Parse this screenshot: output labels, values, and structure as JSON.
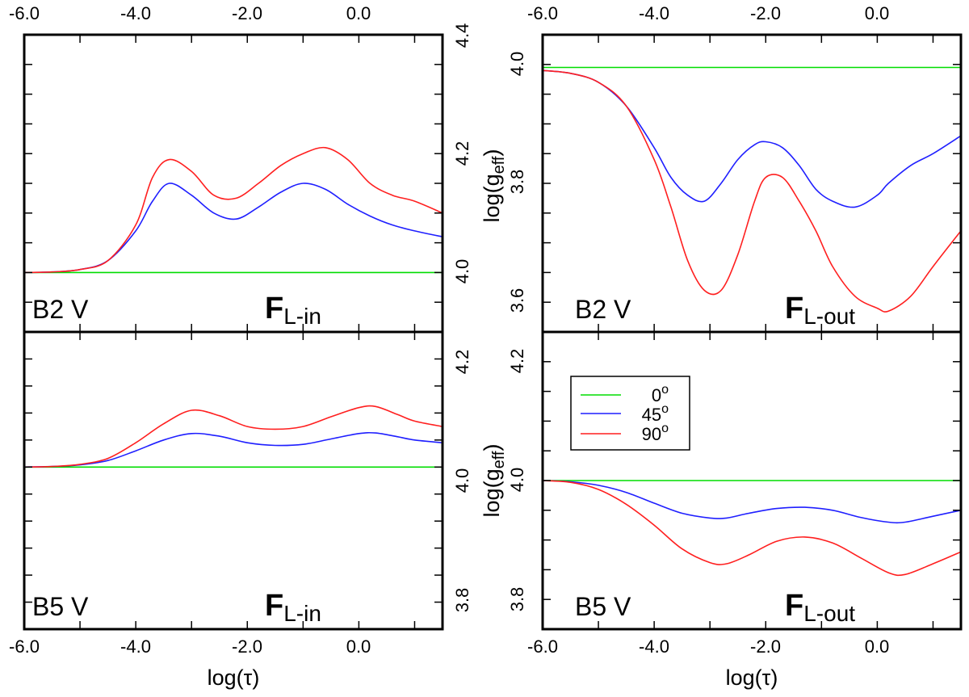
{
  "colors": {
    "green": "#00dd00",
    "blue": "#1f1fff",
    "red": "#ff1f1f"
  },
  "axes": {
    "x_label_text": "log(",
    "x_label_tau": "τ",
    "x_label_close": ")",
    "y_label_prefix": "log(g",
    "y_label_sub": "eff",
    "y_label_close": ")",
    "x_ticks": [
      "-6.0",
      "-4.0",
      "-2.0",
      "0.0"
    ]
  },
  "legend": {
    "entries": [
      {
        "color": "green",
        "value": "0",
        "deg": "o"
      },
      {
        "color": "blue",
        "value": "45",
        "deg": "o"
      },
      {
        "color": "red",
        "value": "90",
        "deg": "o"
      }
    ]
  },
  "chart_data": [
    {
      "id": "tl",
      "type": "line",
      "star_label": "B2 V",
      "flux_F": "F",
      "flux_sub": "L-in",
      "xlim": [
        -6.0,
        1.5
      ],
      "ylim": [
        3.9,
        4.4
      ],
      "y_ticks": [
        "4.0",
        "4.2",
        "4.4"
      ],
      "x": [
        -6.0,
        -5.5,
        -5.0,
        -4.5,
        -4.0,
        -3.7,
        -3.4,
        -3.0,
        -2.6,
        -2.2,
        -1.8,
        -1.4,
        -1.0,
        -0.6,
        -0.2,
        0.2,
        0.6,
        1.0,
        1.5
      ],
      "series": [
        {
          "name": "0°",
          "color": "green",
          "values": [
            4.0,
            4.0,
            4.0,
            4.0,
            4.0,
            4.0,
            4.0,
            4.0,
            4.0,
            4.0,
            4.0,
            4.0,
            4.0,
            4.0,
            4.0,
            4.0,
            4.0,
            4.0,
            4.0
          ]
        },
        {
          "name": "45°",
          "color": "blue",
          "values": [
            4.0,
            4.001,
            4.005,
            4.02,
            4.07,
            4.12,
            4.15,
            4.13,
            4.1,
            4.09,
            4.11,
            4.135,
            4.15,
            4.14,
            4.115,
            4.095,
            4.08,
            4.07,
            4.06
          ]
        },
        {
          "name": "90°",
          "color": "red",
          "values": [
            4.0,
            4.001,
            4.005,
            4.02,
            4.08,
            4.16,
            4.19,
            4.17,
            4.13,
            4.125,
            4.15,
            4.18,
            4.2,
            4.21,
            4.19,
            4.15,
            4.13,
            4.12,
            4.1
          ]
        }
      ]
    },
    {
      "id": "tr",
      "type": "line",
      "star_label": "B2 V",
      "flux_F": "F",
      "flux_sub": "L-out",
      "xlim": [
        -6.0,
        1.5
      ],
      "ylim": [
        3.55,
        4.05
      ],
      "y_ticks": [
        "4.0",
        "3.8",
        "3.6"
      ],
      "x": [
        -6.0,
        -5.5,
        -5.0,
        -4.5,
        -4.0,
        -3.7,
        -3.4,
        -3.1,
        -2.8,
        -2.5,
        -2.2,
        -2.0,
        -1.7,
        -1.4,
        -1.1,
        -0.8,
        -0.4,
        0.0,
        0.2,
        0.6,
        1.0,
        1.5
      ],
      "series": [
        {
          "name": "0°",
          "color": "green",
          "values": [
            3.995,
            3.995,
            3.995,
            3.995,
            3.995,
            3.995,
            3.995,
            3.995,
            3.995,
            3.995,
            3.995,
            3.995,
            3.995,
            3.995,
            3.995,
            3.995,
            3.995,
            3.995,
            3.995,
            3.995,
            3.995,
            3.995
          ]
        },
        {
          "name": "45°",
          "color": "blue",
          "values": [
            3.99,
            3.985,
            3.97,
            3.93,
            3.86,
            3.81,
            3.78,
            3.77,
            3.8,
            3.84,
            3.865,
            3.87,
            3.86,
            3.83,
            3.79,
            3.77,
            3.76,
            3.78,
            3.8,
            3.83,
            3.85,
            3.88
          ]
        },
        {
          "name": "90°",
          "color": "red",
          "values": [
            3.99,
            3.985,
            3.97,
            3.93,
            3.84,
            3.76,
            3.67,
            3.62,
            3.62,
            3.68,
            3.77,
            3.81,
            3.81,
            3.77,
            3.72,
            3.66,
            3.61,
            3.59,
            3.585,
            3.61,
            3.66,
            3.72
          ]
        }
      ]
    },
    {
      "id": "bl",
      "type": "line",
      "star_label": "B5 V",
      "flux_F": "F",
      "flux_sub": "L-in",
      "xlim": [
        -6.0,
        1.5
      ],
      "ylim": [
        3.7,
        4.25
      ],
      "y_ticks": [
        "4.2",
        "4.0",
        "3.8"
      ],
      "x": [
        -6.0,
        -5.5,
        -5.0,
        -4.5,
        -4.0,
        -3.5,
        -3.0,
        -2.5,
        -2.0,
        -1.5,
        -1.0,
        -0.5,
        0.0,
        0.3,
        0.7,
        1.0,
        1.5
      ],
      "series": [
        {
          "name": "0°",
          "color": "green",
          "values": [
            4.0,
            4.0,
            4.0,
            4.0,
            4.0,
            4.0,
            4.0,
            4.0,
            4.0,
            4.0,
            4.0,
            4.0,
            4.0,
            4.0,
            4.0,
            4.0,
            4.0
          ]
        },
        {
          "name": "45°",
          "color": "blue",
          "values": [
            4.0,
            4.001,
            4.004,
            4.012,
            4.03,
            4.05,
            4.062,
            4.057,
            4.045,
            4.04,
            4.042,
            4.052,
            4.062,
            4.063,
            4.056,
            4.05,
            4.045
          ]
        },
        {
          "name": "90°",
          "color": "red",
          "values": [
            4.0,
            4.001,
            4.005,
            4.016,
            4.045,
            4.08,
            4.105,
            4.095,
            4.075,
            4.07,
            4.075,
            4.093,
            4.11,
            4.112,
            4.097,
            4.085,
            4.075
          ]
        }
      ]
    },
    {
      "id": "br",
      "type": "line",
      "star_label": "B5 V",
      "flux_F": "F",
      "flux_sub": "L-out",
      "xlim": [
        -6.0,
        1.5
      ],
      "ylim": [
        3.75,
        4.25
      ],
      "y_ticks": [
        "4.2",
        "4.0",
        "3.8"
      ],
      "x": [
        -6.0,
        -5.5,
        -5.0,
        -4.5,
        -4.0,
        -3.5,
        -3.0,
        -2.7,
        -2.3,
        -1.8,
        -1.3,
        -0.8,
        -0.3,
        0.2,
        0.5,
        1.0,
        1.5
      ],
      "series": [
        {
          "name": "0°",
          "color": "green",
          "values": [
            4.0,
            4.0,
            4.0,
            4.0,
            4.0,
            4.0,
            4.0,
            4.0,
            4.0,
            4.0,
            4.0,
            4.0,
            4.0,
            4.0,
            4.0,
            4.0,
            4.0
          ]
        },
        {
          "name": "45°",
          "color": "blue",
          "values": [
            4.0,
            3.998,
            3.992,
            3.98,
            3.962,
            3.945,
            3.937,
            3.937,
            3.945,
            3.953,
            3.955,
            3.95,
            3.938,
            3.93,
            3.93,
            3.94,
            3.95
          ]
        },
        {
          "name": "90°",
          "color": "red",
          "values": [
            4.0,
            3.997,
            3.985,
            3.96,
            3.925,
            3.885,
            3.862,
            3.86,
            3.875,
            3.898,
            3.905,
            3.895,
            3.87,
            3.845,
            3.842,
            3.86,
            3.88
          ]
        }
      ]
    }
  ]
}
